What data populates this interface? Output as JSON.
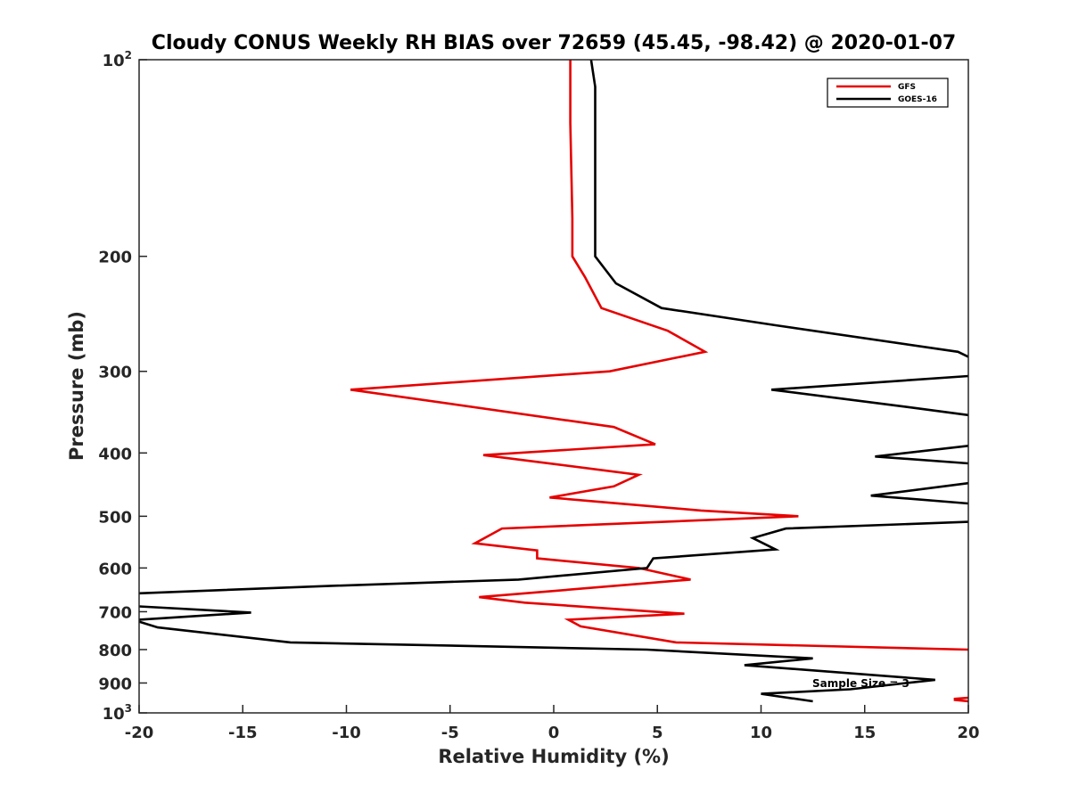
{
  "chart_data": {
    "type": "line",
    "title": "Cloudy CONUS Weekly RH BIAS over 72659 (45.45, -98.42) @ 2020-01-07",
    "xlabel": "Relative Humidity (%)",
    "ylabel": "Pressure (mb)",
    "xlim": [
      -20,
      20
    ],
    "ylim": [
      100,
      1000
    ],
    "y_scale": "log",
    "y_reversed": true,
    "grid": false,
    "legend_position": "top-right",
    "xticks": [
      "-20",
      "-15",
      "-10",
      "-5",
      "0",
      "5",
      "10",
      "15",
      "20"
    ],
    "yticks": [
      {
        "value": 100,
        "base": "10",
        "exp": "2"
      },
      {
        "value": 200,
        "label": "200"
      },
      {
        "value": 300,
        "label": "300"
      },
      {
        "value": 400,
        "label": "400"
      },
      {
        "value": 500,
        "label": "500"
      },
      {
        "value": 600,
        "label": "600"
      },
      {
        "value": 700,
        "label": "700"
      },
      {
        "value": 800,
        "label": "800"
      },
      {
        "value": 900,
        "label": "900"
      },
      {
        "value": 1000,
        "base": "10",
        "exp": "3"
      }
    ],
    "annotation": "Sample Size = 3",
    "series": [
      {
        "name": "GFS",
        "color": "#e60000",
        "points": [
          [
            0.8,
            100
          ],
          [
            0.8,
            125
          ],
          [
            0.9,
            175
          ],
          [
            0.9,
            200
          ],
          [
            1.5,
            215
          ],
          [
            2.3,
            240
          ],
          [
            5.5,
            260
          ],
          [
            7.3,
            280
          ],
          [
            2.7,
            300
          ],
          [
            -9.8,
            320
          ],
          [
            2.9,
            365
          ],
          [
            4.9,
            388
          ],
          [
            -3.4,
            403
          ],
          [
            4.1,
            432
          ],
          [
            2.9,
            450
          ],
          [
            -0.2,
            468
          ],
          [
            7.1,
            490
          ],
          [
            11.8,
            500
          ],
          [
            -2.5,
            522
          ],
          [
            -3.8,
            550
          ],
          [
            -0.8,
            564
          ],
          [
            -0.8,
            580
          ],
          [
            4.1,
            600
          ],
          [
            6.6,
            625
          ],
          [
            -3.6,
            665
          ],
          [
            -1.4,
            678
          ],
          [
            6.3,
            705
          ],
          [
            0.7,
            720
          ],
          [
            1.3,
            737
          ],
          [
            5.9,
            780
          ],
          [
            20,
            800
          ]
        ],
        "extra_segments": [
          [
            [
              20,
              948
            ],
            [
              19.3,
              952
            ]
          ],
          [
            [
              19.3,
              955
            ],
            [
              20,
              960
            ]
          ]
        ]
      },
      {
        "name": "GOES-16",
        "color": "#000000",
        "points": [
          [
            1.8,
            100
          ],
          [
            2.0,
            110
          ],
          [
            2.0,
            180
          ],
          [
            2.0,
            200
          ],
          [
            3.0,
            220
          ],
          [
            5.2,
            240
          ],
          [
            10.7,
            255
          ],
          [
            19.5,
            280
          ],
          [
            20,
            285
          ]
        ],
        "extra_segments": [
          [
            [
              20,
              305
            ],
            [
              10.5,
              320
            ],
            [
              17.0,
              340
            ],
            [
              20,
              350
            ]
          ],
          [
            [
              20,
              390
            ],
            [
              15.5,
              405
            ],
            [
              20,
              415
            ]
          ],
          [
            [
              20,
              445
            ],
            [
              15.3,
              465
            ],
            [
              20,
              478
            ]
          ],
          [
            [
              20,
              510
            ],
            [
              11.2,
              522
            ],
            [
              9.6,
              540
            ],
            [
              10.7,
              562
            ],
            [
              4.8,
              580
            ],
            [
              4.5,
              600
            ],
            [
              -1.7,
              625
            ],
            [
              -11.3,
              640
            ],
            [
              -20,
              656
            ]
          ],
          [
            [
              -20,
              687
            ],
            [
              -14.6,
              702
            ],
            [
              -20,
              720
            ]
          ],
          [
            [
              -20,
              725
            ],
            [
              -19.1,
              740
            ],
            [
              -12.7,
              780
            ],
            [
              4.5,
              800
            ],
            [
              12.5,
              825
            ],
            [
              9.2,
              845
            ],
            [
              18.4,
              890
            ],
            [
              14.3,
              920
            ],
            [
              10.0,
              935
            ],
            [
              12.5,
              960
            ]
          ]
        ]
      }
    ]
  }
}
